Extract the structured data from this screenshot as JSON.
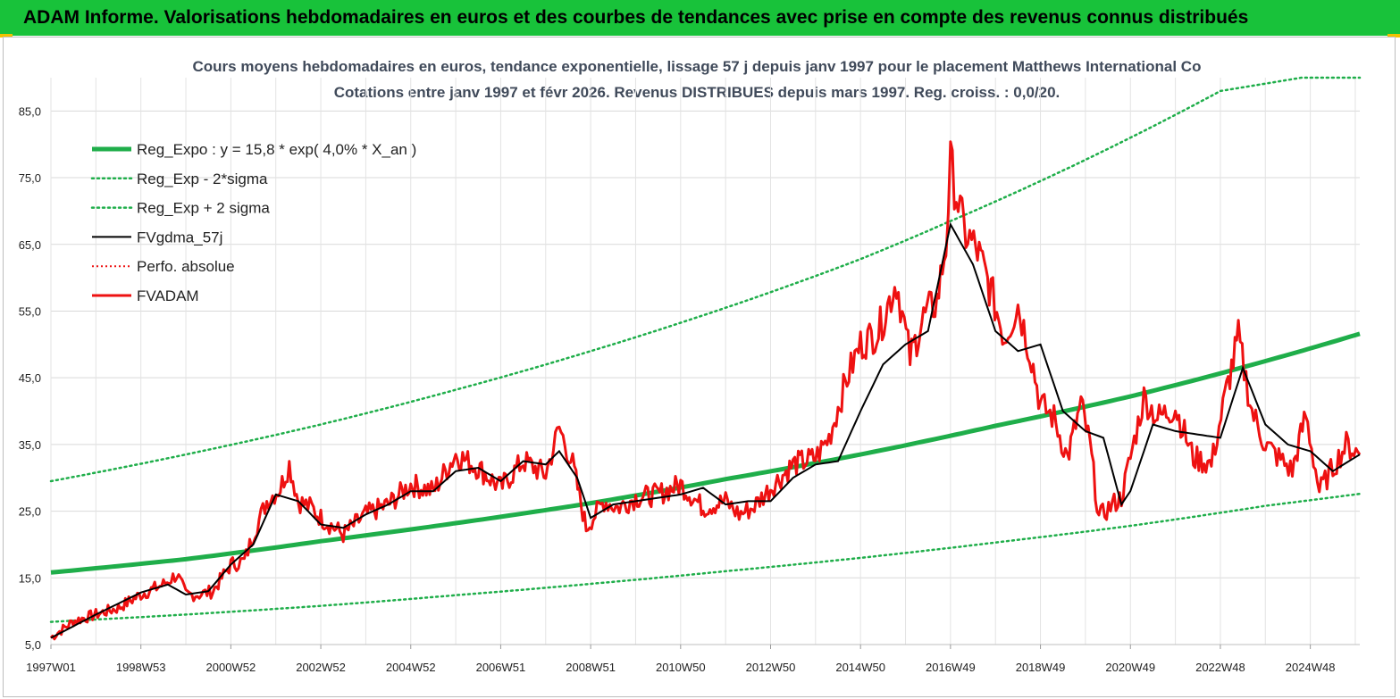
{
  "banner": {
    "title": "ADAM Informe. Valorisations hebdomadaires en euros et des courbes de tendances avec prise en compte des revenus connus distribués"
  },
  "colors": {
    "banner": "#18c23a",
    "trend": "#1fae4a",
    "price": "#ee1111",
    "smooth": "#000000",
    "perfo": "#ee1111"
  },
  "chart_data": {
    "type": "line",
    "title": "Cours moyens hebdomadaires en euros, tendance exponentielle, lissage 57 j depuis janv 1997  pour le placement Matthews International Co",
    "subtitle": "Cotations entre janv 1997 et févr 2026. Revenus DISTRIBUES depuis mars 1997. Reg. croiss. : 0,0/20.",
    "xlabel": "",
    "ylabel": "",
    "x_range": [
      1997.0,
      2026.1
    ],
    "ylim": [
      5,
      90
    ],
    "grid": true,
    "legend_position": "top-left",
    "y_ticks": [
      "5,0",
      "15,0",
      "25,0",
      "35,0",
      "45,0",
      "55,0",
      "65,0",
      "75,0",
      "85,0"
    ],
    "x_ticks": [
      {
        "label": "1997W01",
        "x": 1997.0
      },
      {
        "label": "1998W53",
        "x": 1999.0
      },
      {
        "label": "2000W52",
        "x": 2001.0
      },
      {
        "label": "2002W52",
        "x": 2003.0
      },
      {
        "label": "2004W52",
        "x": 2005.0
      },
      {
        "label": "2006W51",
        "x": 2007.0
      },
      {
        "label": "2008W51",
        "x": 2009.0
      },
      {
        "label": "2010W50",
        "x": 2011.0
      },
      {
        "label": "2012W50",
        "x": 2013.0
      },
      {
        "label": "2014W50",
        "x": 2015.0
      },
      {
        "label": "2016W49",
        "x": 2017.0
      },
      {
        "label": "2018W49",
        "x": 2019.0
      },
      {
        "label": "2020W49",
        "x": 2021.0
      },
      {
        "label": "2022W48",
        "x": 2023.0
      },
      {
        "label": "2024W48",
        "x": 2025.0
      }
    ],
    "series": [
      {
        "name": "Reg_Expo : y = 15,8 * exp( 4,0% *  X_an )",
        "style": "trend",
        "x": [
          1997.0,
          2000.0,
          2003.0,
          2006.0,
          2009.0,
          2012.0,
          2015.0,
          2018.0,
          2021.0,
          2024.0,
          2026.1
        ],
        "y": [
          15.8,
          17.8,
          20.5,
          23.2,
          26.2,
          29.8,
          33.5,
          37.8,
          42.2,
          47.5,
          51.6
        ]
      },
      {
        "name": "Reg_Exp - 2*sigma",
        "style": "dotted-green",
        "x": [
          1997.0,
          2000.0,
          2003.0,
          2006.0,
          2009.0,
          2012.0,
          2015.0,
          2018.0,
          2021.0,
          2024.0,
          2026.1
        ],
        "y": [
          8.4,
          9.5,
          10.8,
          12.4,
          14.1,
          16.0,
          18.0,
          20.3,
          22.8,
          25.8,
          27.6
        ]
      },
      {
        "name": "Reg_Exp + 2 sigma",
        "style": "dotted-green",
        "x": [
          1997.0,
          2000.0,
          2003.0,
          2006.0,
          2009.0,
          2012.0,
          2015.0,
          2017.0,
          2019.0,
          2021.0,
          2023.0,
          2024.8,
          2026.1
        ],
        "y": [
          29.5,
          33.5,
          38.0,
          43.2,
          49.0,
          55.5,
          62.8,
          68.5,
          74.5,
          81.0,
          88.0,
          90.0,
          90.0
        ]
      },
      {
        "name": "FVgdma_57j",
        "style": "smooth",
        "x": [
          1997.0,
          1998.0,
          1999.0,
          1999.6,
          2000.0,
          2000.5,
          2001.0,
          2001.5,
          2002.0,
          2002.5,
          2003.0,
          2003.5,
          2004.0,
          2004.5,
          2005.0,
          2005.5,
          2006.0,
          2006.5,
          2007.0,
          2007.5,
          2008.0,
          2008.3,
          2008.7,
          2009.0,
          2009.5,
          2010.0,
          2010.5,
          2011.0,
          2011.5,
          2012.0,
          2012.5,
          2013.0,
          2013.5,
          2014.0,
          2014.5,
          2015.0,
          2015.5,
          2016.0,
          2016.5,
          2017.0,
          2017.5,
          2018.0,
          2018.5,
          2019.0,
          2019.5,
          2020.0,
          2020.4,
          2020.8,
          2021.0,
          2021.5,
          2022.0,
          2022.5,
          2023.0,
          2023.5,
          2024.0,
          2024.5,
          2025.0,
          2025.5,
          2026.1
        ],
        "y": [
          6.0,
          9.5,
          12.8,
          14.0,
          12.5,
          13.0,
          17.0,
          20.0,
          27.5,
          26.5,
          23.0,
          22.5,
          24.5,
          26.0,
          28.0,
          28.0,
          31.0,
          31.5,
          29.5,
          32.5,
          32.0,
          34.0,
          30.0,
          24.0,
          26.0,
          26.5,
          27.0,
          27.5,
          28.5,
          26.0,
          26.5,
          26.5,
          30.0,
          32.0,
          32.5,
          40.0,
          47.0,
          50.0,
          52.0,
          68.0,
          62.0,
          52.0,
          49.0,
          50.0,
          40.0,
          37.0,
          36.0,
          26.0,
          28.0,
          38.0,
          37.0,
          36.5,
          36.0,
          46.5,
          38.0,
          35.0,
          34.0,
          31.0,
          33.5
        ]
      },
      {
        "name": "Perfo. absolue",
        "style": "dotted-red",
        "x": [],
        "y": []
      },
      {
        "name": "FVADAM",
        "style": "price",
        "x": [
          1997.0,
          1997.5,
          1998.0,
          1998.5,
          1999.0,
          1999.5,
          1999.8,
          2000.0,
          2000.3,
          2000.6,
          2001.0,
          2001.3,
          2001.5,
          2001.8,
          2002.1,
          2002.3,
          2002.5,
          2002.8,
          2003.0,
          2003.5,
          2004.0,
          2004.5,
          2005.0,
          2005.5,
          2006.0,
          2006.5,
          2007.0,
          2007.5,
          2008.0,
          2008.3,
          2008.6,
          2008.9,
          2009.1,
          2009.3,
          2009.6,
          2010.0,
          2010.5,
          2011.0,
          2011.5,
          2012.0,
          2012.3,
          2012.6,
          2013.0,
          2013.5,
          2014.0,
          2014.3,
          2014.7,
          2015.0,
          2015.4,
          2015.8,
          2016.1,
          2016.4,
          2016.7,
          2016.9,
          2017.0,
          2017.3,
          2017.6,
          2017.9,
          2018.2,
          2018.5,
          2018.8,
          2019.0,
          2019.3,
          2019.6,
          2019.9,
          2020.1,
          2020.3,
          2020.6,
          2020.8,
          2021.0,
          2021.3,
          2021.6,
          2022.0,
          2022.4,
          2022.8,
          2023.1,
          2023.4,
          2023.7,
          2024.0,
          2024.3,
          2024.6,
          2024.9,
          2025.2,
          2025.5,
          2025.8,
          2026.1
        ],
        "y": [
          6.0,
          8.5,
          9.5,
          10.5,
          12.5,
          14.0,
          15.5,
          12.5,
          12.5,
          13.0,
          17.0,
          17.5,
          21.5,
          26.5,
          28.5,
          32.0,
          26.5,
          25.5,
          24.0,
          21.5,
          24.5,
          26.0,
          29.0,
          28.0,
          33.5,
          31.5,
          28.5,
          32.5,
          30.5,
          37.5,
          32.0,
          22.5,
          24.5,
          26.5,
          25.5,
          27.0,
          27.5,
          29.0,
          25.5,
          26.5,
          24.5,
          25.5,
          28.5,
          32.0,
          33.0,
          36.0,
          45.0,
          50.0,
          52.0,
          59.5,
          48.0,
          54.0,
          56.5,
          65.0,
          77.0,
          67.0,
          64.0,
          58.0,
          51.0,
          56.0,
          48.0,
          41.0,
          39.0,
          33.0,
          41.0,
          35.0,
          24.0,
          26.0,
          27.0,
          33.0,
          42.0,
          39.0,
          40.5,
          33.0,
          32.0,
          42.0,
          51.0,
          40.0,
          35.0,
          33.0,
          31.0,
          39.5,
          28.0,
          31.5,
          35.0,
          33.5
        ]
      }
    ]
  }
}
